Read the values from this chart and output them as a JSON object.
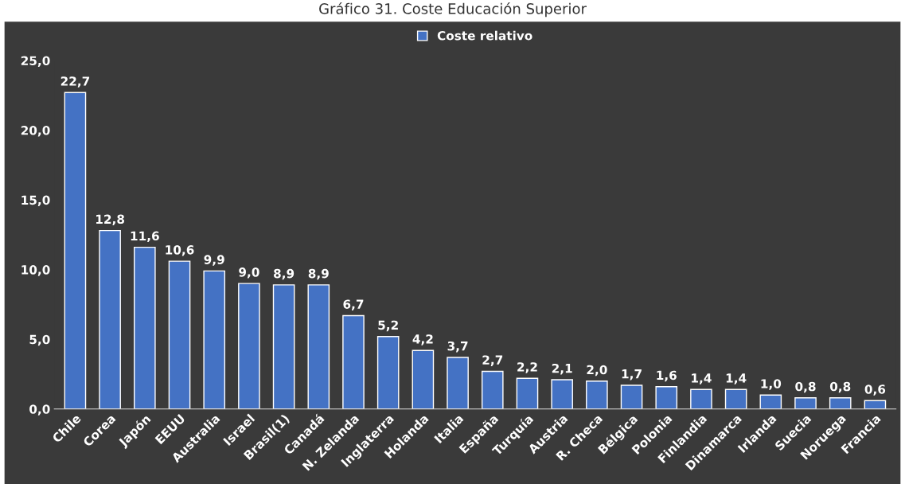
{
  "chart_data": {
    "type": "bar",
    "title": "Gráfico 31. Coste Educación Superior",
    "categories": [
      "Chile",
      "Corea",
      "Japón",
      "EEUU",
      "Australia",
      "Israel",
      "Brasil(1)",
      "Canadá",
      "N. Zelanda",
      "Inglaterra",
      "Holanda",
      "Italia",
      "España",
      "Turquía",
      "Austria",
      "R. Checa",
      "Bélgica",
      "Polonia",
      "Finlandia",
      "Dinamarca",
      "Irlanda",
      "Suecia",
      "Noruega",
      "Francia"
    ],
    "series": [
      {
        "name": "Coste relativo",
        "color": "#4472c4",
        "values": [
          22.7,
          12.8,
          11.6,
          10.6,
          9.9,
          9.0,
          8.9,
          8.9,
          6.7,
          5.2,
          4.2,
          3.7,
          2.7,
          2.2,
          2.1,
          2.0,
          1.7,
          1.6,
          1.4,
          1.4,
          1.0,
          0.8,
          0.8,
          0.6
        ],
        "value_labels": [
          "22,7",
          "12,8",
          "11,6",
          "10,6",
          "9,9",
          "9,0",
          "8,9",
          "8,9",
          "6,7",
          "5,2",
          "4,2",
          "3,7",
          "2,7",
          "2,2",
          "2,1",
          "2,0",
          "1,7",
          "1,6",
          "1,4",
          "1,4",
          "1,0",
          "0,8",
          "0,8",
          "0,6"
        ]
      }
    ],
    "ylim": [
      0,
      25
    ],
    "yticks": [
      {
        "value": 0,
        "label": "0,0"
      },
      {
        "value": 5,
        "label": "5,0"
      },
      {
        "value": 10,
        "label": "10,0"
      },
      {
        "value": 15,
        "label": "15,0"
      },
      {
        "value": 20,
        "label": "20,0"
      },
      {
        "value": 25,
        "label": "25,0"
      }
    ],
    "grid": false,
    "legend": "top"
  }
}
